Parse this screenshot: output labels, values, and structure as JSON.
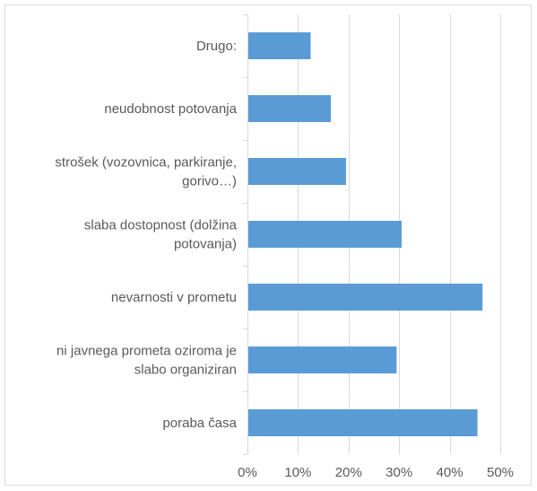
{
  "chart_data": {
    "type": "bar",
    "orientation": "horizontal",
    "categories": [
      "Drugo:",
      "neudobnost potovanja",
      "strošek (vozovnica, parkiranje, gorivo…)",
      "slaba dostopnost (dolžina potovanja)",
      "nevarnosti v prometu",
      "ni javnega prometa oziroma je slabo organiziran",
      "poraba časa"
    ],
    "category_lines": [
      [
        "Drugo:"
      ],
      [
        "neudobnost potovanja"
      ],
      [
        "strošek (vozovnica, parkiranje,",
        "gorivo…)"
      ],
      [
        "slaba dostopnost (dolžina",
        "potovanja)"
      ],
      [
        "nevarnosti v prometu"
      ],
      [
        "ni javnega prometa oziroma je",
        "slabo organiziran"
      ],
      [
        "poraba časa"
      ]
    ],
    "values": [
      12.5,
      16.5,
      19.5,
      30.5,
      46.5,
      29.5,
      45.5
    ],
    "xlim": [
      0,
      50
    ],
    "xticks": [
      "0%",
      "10%",
      "20%",
      "30%",
      "40%",
      "50%"
    ],
    "xtick_values": [
      0,
      10,
      20,
      30,
      40,
      50
    ],
    "title": "",
    "xlabel": "",
    "ylabel": "",
    "grid": true,
    "legend": "none",
    "bar_color": "#5b9bd5"
  }
}
